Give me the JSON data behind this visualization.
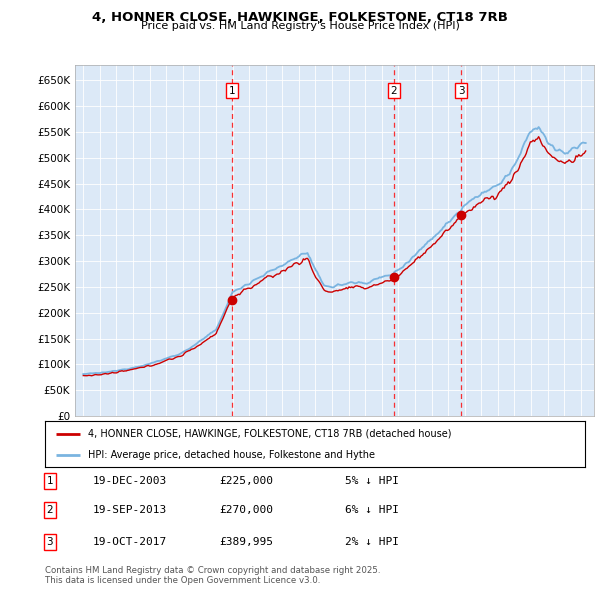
{
  "title_line1": "4, HONNER CLOSE, HAWKINGE, FOLKESTONE, CT18 7RB",
  "title_line2": "Price paid vs. HM Land Registry's House Price Index (HPI)",
  "plot_bg_color": "#dce9f7",
  "hpi_color": "#7ab4e0",
  "price_color": "#cc0000",
  "sale_dates": [
    2003.97,
    2013.72,
    2017.8
  ],
  "sale_prices": [
    225000,
    270000,
    389995
  ],
  "sale_labels": [
    "1",
    "2",
    "3"
  ],
  "legend_label_price": "4, HONNER CLOSE, HAWKINGE, FOLKESTONE, CT18 7RB (detached house)",
  "legend_label_hpi": "HPI: Average price, detached house, Folkestone and Hythe",
  "sale_info": [
    {
      "num": "1",
      "date": "19-DEC-2003",
      "price": "£225,000",
      "pct": "5% ↓ HPI"
    },
    {
      "num": "2",
      "date": "19-SEP-2013",
      "price": "£270,000",
      "pct": "6% ↓ HPI"
    },
    {
      "num": "3",
      "date": "19-OCT-2017",
      "price": "£389,995",
      "pct": "2% ↓ HPI"
    }
  ],
  "footnote": "Contains HM Land Registry data © Crown copyright and database right 2025.\nThis data is licensed under the Open Government Licence v3.0.",
  "yticks": [
    0,
    50000,
    100000,
    150000,
    200000,
    250000,
    300000,
    350000,
    400000,
    450000,
    500000,
    550000,
    600000,
    650000
  ],
  "ylim_max": 680000,
  "xlim_start": 1994.5,
  "xlim_end": 2025.8
}
